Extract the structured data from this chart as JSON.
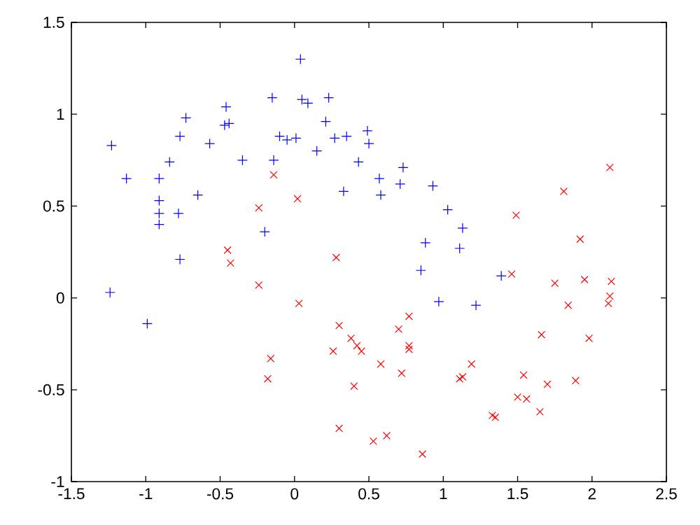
{
  "chart_data": {
    "type": "scatter",
    "xlim": [
      -1.5,
      2.5
    ],
    "ylim": [
      -1,
      1.5
    ],
    "xticks": [
      -1.5,
      -1,
      -0.5,
      0,
      0.5,
      1,
      1.5,
      2,
      2.5
    ],
    "yticks": [
      -1,
      -0.5,
      0,
      0.5,
      1,
      1.5
    ],
    "series": [
      {
        "color": "#0000ff",
        "marker": "plus",
        "x": [
          -1.23,
          -1.13,
          -0.91,
          -0.91,
          -0.91,
          -0.91,
          -0.78,
          -0.84,
          -0.77,
          -0.73,
          -0.65,
          -0.77,
          -0.57,
          -0.46,
          -0.47,
          -0.44,
          -0.35,
          -0.15,
          -0.14,
          -0.1,
          -0.05,
          0.01,
          -0.2,
          0.04,
          0.05,
          0.09,
          0.15,
          0.21,
          0.23,
          0.27,
          0.35,
          0.33,
          0.43,
          0.49,
          0.5,
          0.57,
          0.73,
          0.71,
          0.58,
          0.93,
          1.03,
          1.13,
          0.88,
          1.11,
          0.85,
          1.39,
          0.97,
          1.22,
          -1.24,
          -0.99
        ],
        "values": [
          0.83,
          0.65,
          0.65,
          0.53,
          0.46,
          0.4,
          0.46,
          0.74,
          0.88,
          0.98,
          0.56,
          0.21,
          0.84,
          1.04,
          0.94,
          0.95,
          0.75,
          1.09,
          0.75,
          0.88,
          0.86,
          0.87,
          0.36,
          1.3,
          1.08,
          1.06,
          0.8,
          0.96,
          1.09,
          0.87,
          0.88,
          0.58,
          0.74,
          0.91,
          0.84,
          0.65,
          0.71,
          0.62,
          0.56,
          0.61,
          0.48,
          0.38,
          0.3,
          0.27,
          0.15,
          0.12,
          -0.02,
          -0.04,
          0.03,
          -0.14
        ]
      },
      {
        "color": "#ff0000",
        "marker": "cross",
        "x": [
          -0.14,
          0.02,
          -0.24,
          0.28,
          -0.45,
          -0.43,
          -0.24,
          1.49,
          1.81,
          2.12,
          1.92,
          1.46,
          1.75,
          1.95,
          2.13,
          2.12,
          2.11,
          1.84,
          1.66,
          1.98,
          1.54,
          1.7,
          1.89,
          1.5,
          1.56,
          1.65,
          1.33,
          1.35,
          1.19,
          1.13,
          1.11,
          0.77,
          0.7,
          0.77,
          0.77,
          0.58,
          0.72,
          0.3,
          0.38,
          0.42,
          0.45,
          0.26,
          0.4,
          0.3,
          0.53,
          0.62,
          0.86,
          0.03,
          -0.16,
          -0.18
        ],
        "values": [
          0.67,
          0.54,
          0.49,
          0.22,
          0.26,
          0.19,
          0.07,
          0.45,
          0.58,
          0.71,
          0.32,
          0.13,
          0.08,
          0.1,
          0.09,
          0.01,
          -0.03,
          -0.04,
          -0.2,
          -0.22,
          -0.42,
          -0.47,
          -0.45,
          -0.54,
          -0.55,
          -0.62,
          -0.64,
          -0.65,
          -0.36,
          -0.43,
          -0.44,
          -0.1,
          -0.17,
          -0.26,
          -0.28,
          -0.36,
          -0.41,
          -0.15,
          -0.22,
          -0.26,
          -0.29,
          -0.29,
          -0.48,
          -0.71,
          -0.78,
          -0.75,
          -0.85,
          -0.03,
          -0.33,
          -0.44
        ]
      }
    ]
  }
}
